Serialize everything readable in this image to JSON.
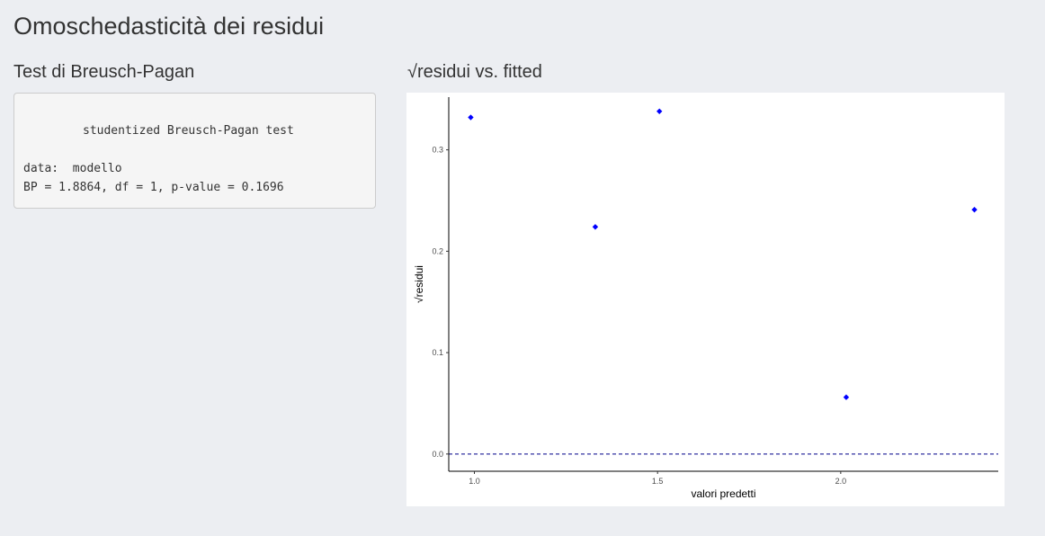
{
  "page": {
    "title": "Omoschedasticità dei residui"
  },
  "breusch_pagan": {
    "section_title": "Test di Breusch-Pagan",
    "output_lines": [
      "",
      "studentized Breusch-Pagan test",
      "",
      "data:  modello",
      "BP = 1.8864, df = 1, p-value = 0.1696"
    ]
  },
  "plot": {
    "section_title": "√residui vs. fitted"
  },
  "chart_data": {
    "type": "scatter",
    "title": "",
    "xlabel": "valori predetti",
    "ylabel": "√residui",
    "x": [
      0.99,
      1.33,
      1.505,
      2.015,
      2.365
    ],
    "y": [
      0.332,
      0.224,
      0.338,
      0.056,
      0.241
    ],
    "xlim": [
      0.93,
      2.43
    ],
    "ylim": [
      -0.017,
      0.352
    ],
    "x_ticks": [
      1.0,
      1.5,
      2.0
    ],
    "x_tick_labels": [
      "1.0",
      "1.5",
      "2.0"
    ],
    "y_ticks": [
      0.0,
      0.1,
      0.2,
      0.3
    ],
    "y_tick_labels": [
      "0.0",
      "0.1",
      "0.2",
      "0.3"
    ],
    "reference_line": {
      "y": 0,
      "style": "dashed",
      "color": "#00008b"
    },
    "point_color": "#0000ff",
    "point_shape": "diamond",
    "grid": false,
    "legend": "none"
  }
}
